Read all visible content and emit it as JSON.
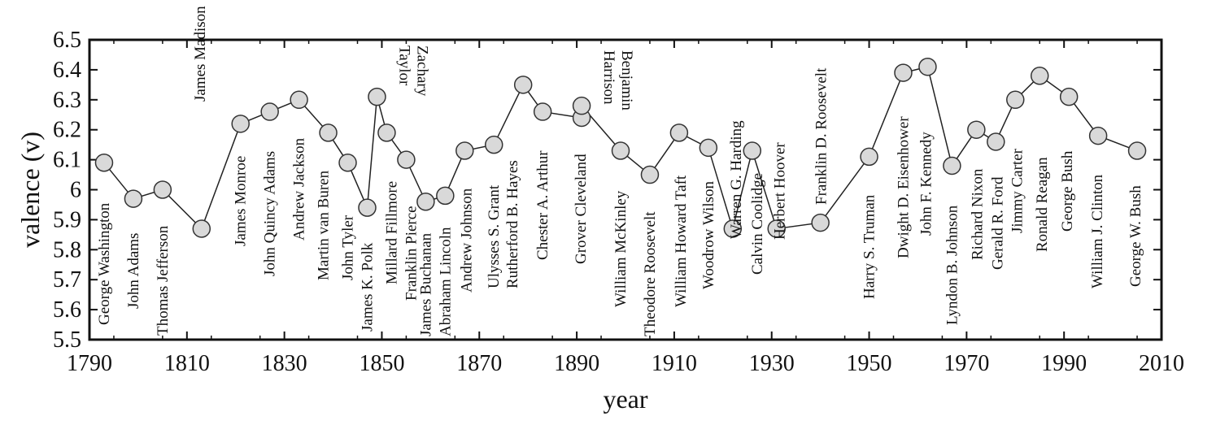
{
  "chart_data": {
    "type": "line",
    "xlabel": "year",
    "ylabel": "valence (v)",
    "xlim": [
      1790,
      2010
    ],
    "ylim": [
      5.5,
      6.5
    ],
    "xticks": [
      1790,
      1810,
      1830,
      1850,
      1870,
      1890,
      1910,
      1930,
      1950,
      1970,
      1990,
      2010
    ],
    "yticks": [
      5.5,
      5.6,
      5.7,
      5.8,
      5.9,
      6,
      6.1,
      6.2,
      6.3,
      6.4,
      6.5
    ],
    "xtick_labels": [
      "1790",
      "1810",
      "1830",
      "1850",
      "1870",
      "1890",
      "1910",
      "1930",
      "1950",
      "1970",
      "1990",
      "2010"
    ],
    "ytick_labels": [
      "5.5",
      "5.6",
      "5.7",
      "5.8",
      "5.9",
      "6",
      "6.1",
      "6.2",
      "6.3",
      "6.4",
      "6.5"
    ],
    "grid": false,
    "marker_fill": "#d9d9d9",
    "marker_stroke": "#333333",
    "line_color": "#222222",
    "points": [
      {
        "name": "George Washington",
        "x": 1793,
        "y": 6.09
      },
      {
        "name": "John Adams",
        "x": 1799,
        "y": 5.97
      },
      {
        "name": "Thomas Jefferson",
        "x": 1805,
        "y": 6.0
      },
      {
        "name": "James Madison",
        "x": 1813,
        "y": 5.87
      },
      {
        "name": "James Monroe",
        "x": 1821,
        "y": 6.22
      },
      {
        "name": "John Quincy Adams",
        "x": 1827,
        "y": 6.26
      },
      {
        "name": "Andrew Jackson",
        "x": 1833,
        "y": 6.3
      },
      {
        "name": "Martin van Buren",
        "x": 1839,
        "y": 6.19
      },
      {
        "name": "John Tyler",
        "x": 1843,
        "y": 6.09
      },
      {
        "name": "James K. Polk",
        "x": 1847,
        "y": 5.94
      },
      {
        "name": "Zachary Taylor",
        "x": 1849,
        "y": 6.31
      },
      {
        "name": "Millard Fillmore",
        "x": 1851,
        "y": 6.19
      },
      {
        "name": "Franklin Pierce",
        "x": 1855,
        "y": 6.1
      },
      {
        "name": "James Buchanan",
        "x": 1859,
        "y": 5.96
      },
      {
        "name": "Abraham Lincoln",
        "x": 1863,
        "y": 5.98
      },
      {
        "name": "Andrew Johnson",
        "x": 1867,
        "y": 6.13
      },
      {
        "name": "Ulysses S. Grant",
        "x": 1873,
        "y": 6.15
      },
      {
        "name": "Rutherford B. Hayes",
        "x": 1879,
        "y": 6.35
      },
      {
        "name": "Chester A. Arthur",
        "x": 1883,
        "y": 6.26
      },
      {
        "name": "Grover Cleveland",
        "x": 1891,
        "y": 6.24
      },
      {
        "name": "Benjamin Harrison",
        "x": 1891,
        "y": 6.28
      },
      {
        "name": "William McKinley",
        "x": 1899,
        "y": 6.13
      },
      {
        "name": "Theodore Roosevelt",
        "x": 1905,
        "y": 6.05
      },
      {
        "name": "William Howard Taft",
        "x": 1911,
        "y": 6.19
      },
      {
        "name": "Woodrow Wilson",
        "x": 1917,
        "y": 6.14
      },
      {
        "name": "Warren G. Harding",
        "x": 1922,
        "y": 5.87
      },
      {
        "name": "Calvin Coolidge",
        "x": 1926,
        "y": 6.13
      },
      {
        "name": "Herbert Hoover",
        "x": 1931,
        "y": 5.87
      },
      {
        "name": "Franklin D. Roosevelt",
        "x": 1940,
        "y": 5.89
      },
      {
        "name": "Harry S. Truman",
        "x": 1950,
        "y": 6.11
      },
      {
        "name": "Dwight D. Eisenhower",
        "x": 1957,
        "y": 6.39
      },
      {
        "name": "John F. Kennedy",
        "x": 1962,
        "y": 6.41
      },
      {
        "name": "Lyndon B. Johnson",
        "x": 1967,
        "y": 6.08
      },
      {
        "name": "Richard Nixon",
        "x": 1972,
        "y": 6.2
      },
      {
        "name": "Gerald R. Ford",
        "x": 1976,
        "y": 6.16
      },
      {
        "name": "Jimmy Carter",
        "x": 1980,
        "y": 6.3
      },
      {
        "name": "Ronald Reagan",
        "x": 1985,
        "y": 6.38
      },
      {
        "name": "George Bush",
        "x": 1991,
        "y": 6.31
      },
      {
        "name": "William J. Clinton",
        "x": 1997,
        "y": 6.18
      },
      {
        "name": "George W. Bush",
        "x": 2005,
        "y": 6.13
      }
    ]
  }
}
